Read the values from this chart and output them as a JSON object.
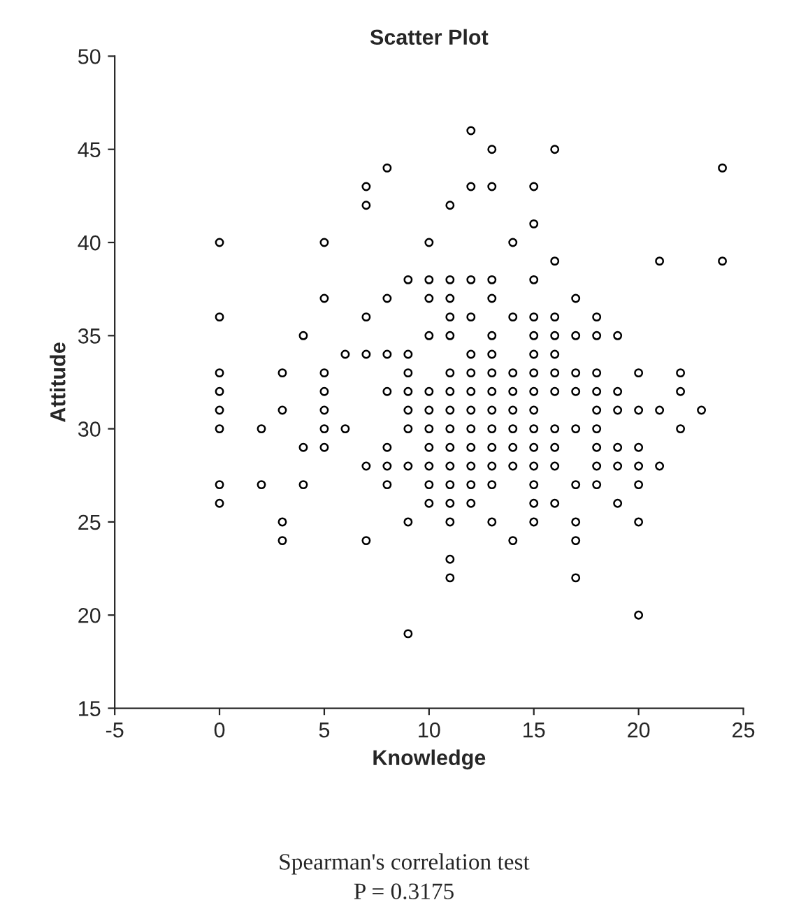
{
  "chart_data": {
    "type": "scatter",
    "title": "Scatter Plot",
    "xlabel": "Knowledge",
    "ylabel": "Attitude",
    "annotations": [
      "Spearman's correlation test",
      "P = 0.3175"
    ],
    "series": [
      {
        "color": "#000000",
        "marker": "circle",
        "x": [
          0,
          0,
          0,
          0,
          0,
          0,
          0,
          0,
          2,
          2,
          3,
          3,
          3,
          3,
          4,
          4,
          4,
          5,
          5,
          5,
          5,
          5,
          5,
          5,
          6,
          6,
          7,
          7,
          7,
          7,
          7,
          7,
          8,
          8,
          8,
          8,
          8,
          8,
          8,
          9,
          9,
          9,
          9,
          9,
          9,
          9,
          9,
          9,
          10,
          10,
          10,
          10,
          10,
          10,
          10,
          10,
          10,
          10,
          10,
          11,
          11,
          11,
          11,
          11,
          11,
          11,
          11,
          11,
          11,
          11,
          11,
          11,
          11,
          11,
          11,
          12,
          12,
          12,
          12,
          12,
          12,
          12,
          12,
          12,
          12,
          12,
          12,
          12,
          13,
          13,
          13,
          13,
          13,
          13,
          13,
          13,
          13,
          13,
          13,
          13,
          13,
          13,
          14,
          14,
          14,
          14,
          14,
          14,
          14,
          14,
          14,
          15,
          15,
          15,
          15,
          15,
          15,
          15,
          15,
          15,
          15,
          15,
          15,
          15,
          15,
          15,
          16,
          16,
          16,
          16,
          16,
          16,
          16,
          16,
          16,
          16,
          16,
          17,
          17,
          17,
          17,
          17,
          17,
          17,
          17,
          17,
          18,
          18,
          18,
          18,
          18,
          18,
          18,
          18,
          18,
          19,
          19,
          19,
          19,
          19,
          19,
          20,
          20,
          20,
          20,
          20,
          20,
          20,
          21,
          21,
          21,
          22,
          22,
          22,
          23,
          24,
          24
        ],
        "values": [
          40,
          36,
          33,
          32,
          31,
          30,
          27,
          26,
          30,
          27,
          33,
          31,
          25,
          24,
          35,
          29,
          27,
          40,
          37,
          33,
          32,
          31,
          30,
          29,
          34,
          30,
          43,
          42,
          36,
          34,
          28,
          24,
          44,
          37,
          34,
          32,
          29,
          28,
          27,
          38,
          34,
          33,
          32,
          31,
          30,
          28,
          25,
          19,
          40,
          38,
          37,
          35,
          32,
          31,
          30,
          29,
          28,
          27,
          26,
          42,
          38,
          37,
          36,
          35,
          33,
          32,
          31,
          30,
          29,
          28,
          27,
          26,
          25,
          23,
          22,
          46,
          43,
          38,
          36,
          34,
          33,
          32,
          31,
          30,
          29,
          28,
          27,
          26,
          45,
          43,
          38,
          37,
          35,
          34,
          33,
          32,
          31,
          30,
          29,
          28,
          27,
          25,
          40,
          36,
          33,
          32,
          31,
          30,
          29,
          28,
          24,
          43,
          41,
          38,
          36,
          35,
          34,
          33,
          32,
          31,
          30,
          29,
          28,
          27,
          26,
          25,
          45,
          39,
          36,
          35,
          34,
          33,
          32,
          30,
          29,
          28,
          26,
          37,
          35,
          33,
          32,
          30,
          27,
          25,
          24,
          22,
          36,
          35,
          33,
          32,
          31,
          30,
          29,
          28,
          27,
          35,
          32,
          31,
          29,
          28,
          26,
          33,
          31,
          29,
          28,
          27,
          25,
          20,
          39,
          31,
          28,
          33,
          32,
          30,
          31,
          44,
          39
        ]
      }
    ],
    "xlim": [
      -5,
      25
    ],
    "xticks": [
      -5,
      0,
      5,
      10,
      15,
      20,
      25
    ],
    "ylim": [
      15,
      50
    ],
    "yticks": [
      15,
      20,
      25,
      30,
      35,
      40,
      45,
      50
    ],
    "grid": false,
    "legend": false
  }
}
